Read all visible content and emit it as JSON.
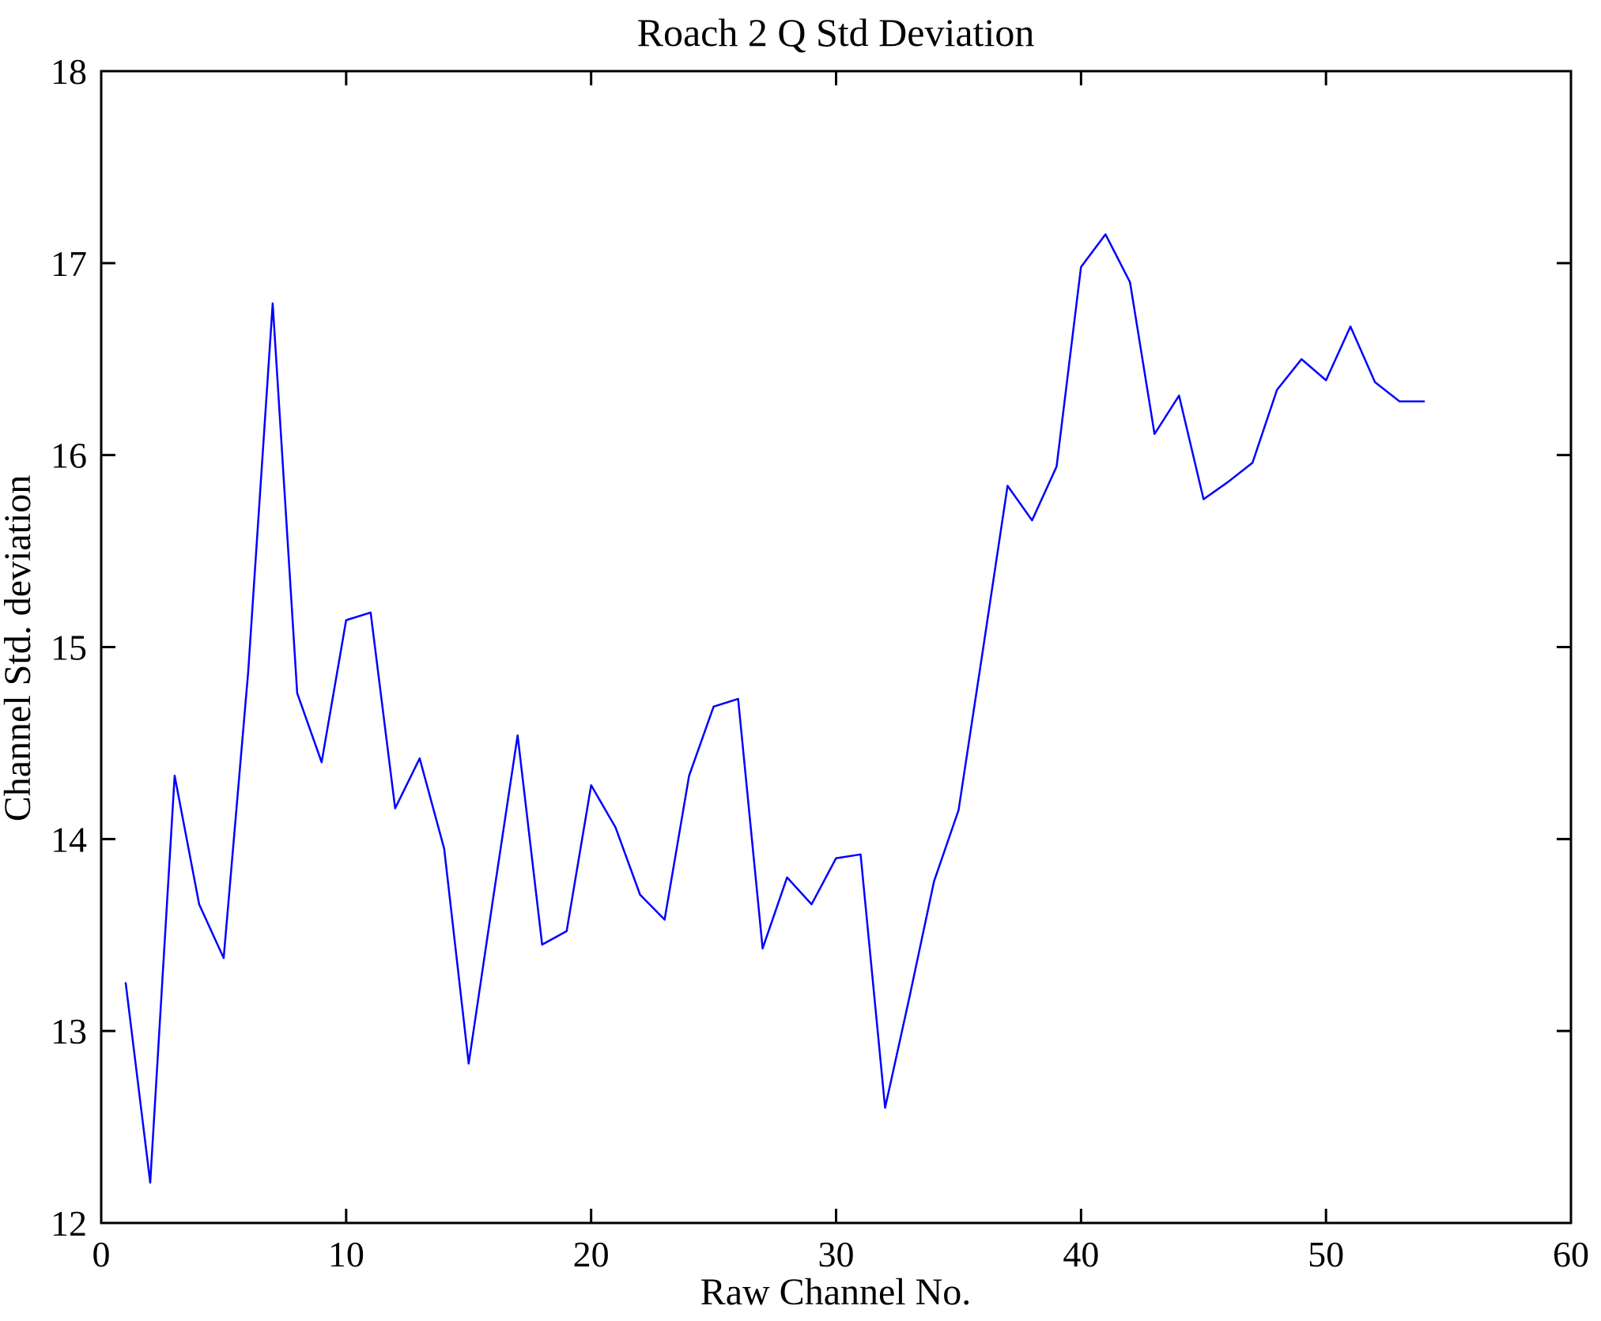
{
  "chart_data": {
    "type": "line",
    "title": "Roach 2 Q Std Deviation",
    "xlabel": "Raw Channel No.",
    "ylabel": "Channel Std. deviation",
    "xlim": [
      0,
      60
    ],
    "ylim": [
      12,
      18
    ],
    "xticks": [
      0,
      10,
      20,
      30,
      40,
      50,
      60
    ],
    "yticks": [
      12,
      13,
      14,
      15,
      16,
      17,
      18
    ],
    "grid": false,
    "legend": "none",
    "line_color": "#0000ff",
    "axis_color": "#000000",
    "background_color": "#ffffff",
    "series": [
      {
        "name": "Channel Std. deviation",
        "x": [
          1,
          2,
          3,
          4,
          5,
          6,
          7,
          8,
          9,
          10,
          11,
          12,
          13,
          14,
          15,
          16,
          17,
          18,
          19,
          20,
          21,
          22,
          23,
          24,
          25,
          26,
          27,
          28,
          29,
          30,
          31,
          32,
          33,
          34,
          35,
          36,
          37,
          38,
          39,
          40,
          41,
          42,
          43,
          44,
          45,
          46,
          47,
          48,
          49,
          50,
          51,
          52,
          53,
          54
        ],
        "values": [
          13.25,
          12.21,
          14.33,
          13.66,
          13.38,
          14.87,
          16.79,
          14.76,
          14.4,
          15.14,
          15.18,
          14.16,
          14.42,
          13.95,
          12.83,
          13.69,
          14.54,
          13.45,
          13.52,
          14.28,
          14.06,
          13.71,
          13.58,
          14.33,
          14.69,
          14.73,
          13.43,
          13.8,
          13.66,
          13.9,
          13.92,
          12.6,
          13.18,
          13.78,
          14.15,
          14.99,
          15.84,
          15.66,
          15.94,
          16.98,
          17.15,
          16.9,
          16.11,
          16.31,
          15.77,
          15.86,
          15.96,
          16.34,
          16.5,
          16.39,
          16.67,
          16.38,
          16.28,
          16.28
        ]
      }
    ]
  }
}
